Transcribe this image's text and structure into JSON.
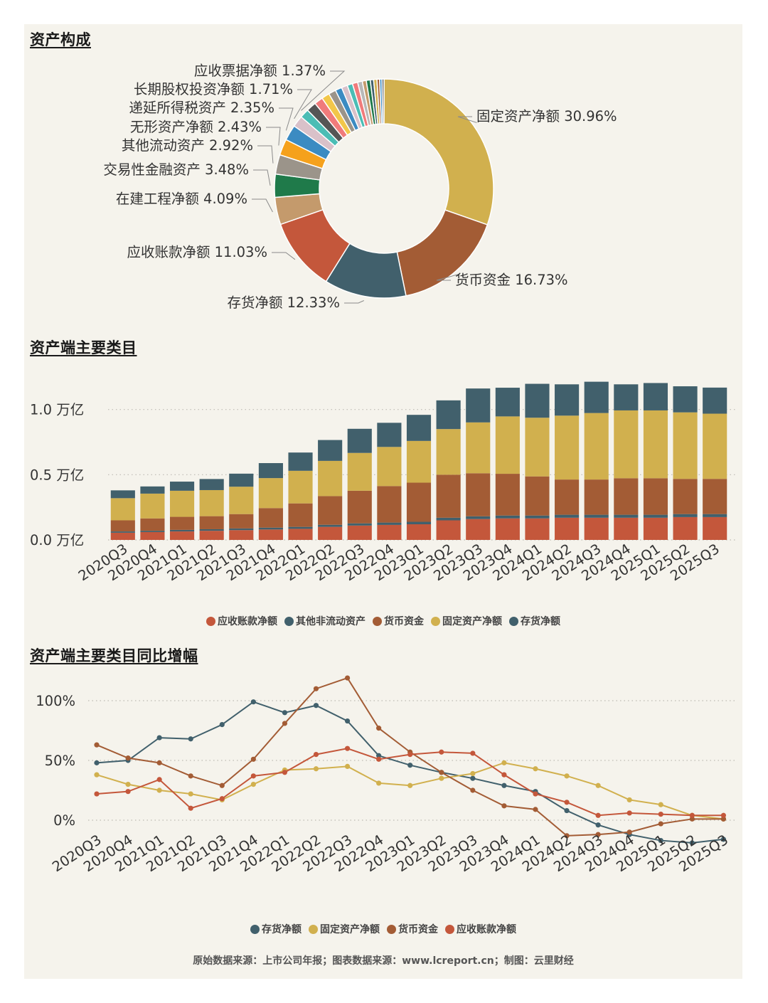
{
  "sections": {
    "donut_title": "资产构成",
    "bar_title": "资产端主要类目",
    "line_title": "资产端主要类目同比增幅"
  },
  "footer": "原始数据来源：上市公司年报；图表数据来源：www.lcreport.cn；制图：云里财经",
  "colors": {
    "yellow": "#d1b04e",
    "brown": "#a35c35",
    "slate": "#41606c",
    "red": "#c4573b",
    "tan": "#c49a6c",
    "green": "#1f7a4a",
    "gray": "#9b948a",
    "orange": "#f5a11c",
    "blue": "#3b8bc2",
    "pink": "#d9c1c9",
    "teal": "#4bbdb5",
    "dark": "#555555",
    "rose": "#f07b7b",
    "gold": "#f2c74a",
    "lightgray": "#b8b8b8",
    "grid": "#bdbab2"
  },
  "chart_data": [
    {
      "type": "pie",
      "title": "资产构成",
      "labels": [
        "固定资产净额",
        "货币资金",
        "存货净额",
        "应收账款净额",
        "在建工程净额",
        "交易性金融资产",
        "其他流动资产",
        "无形资产净额",
        "递延所得税资产",
        "长期股权投资净额",
        "应收票据净额"
      ],
      "values": [
        30.96,
        16.73,
        12.33,
        11.03,
        4.09,
        3.48,
        2.92,
        2.43,
        2.35,
        1.71,
        1.37
      ],
      "display_labels": [
        "固定资产净额 30.96%",
        "货币资金 16.73%",
        "存货净额 12.33%",
        "应收账款净额 11.03%",
        "在建工程净额 4.09%",
        "交易性金融资产 3.48%",
        "其他流动资产 2.92%",
        "无形资产净额 2.43%",
        "递延所得税资产 2.35%",
        "长期股权投资净额 1.71%",
        "应收票据净额 1.37%"
      ],
      "colors": [
        "#d1b04e",
        "#a35c35",
        "#41606c",
        "#c4573b",
        "#c49a6c",
        "#1f7a4a",
        "#9b948a",
        "#f5a11c",
        "#3b8bc2",
        "#d9c1c9",
        "#4bbdb5"
      ],
      "other_slices": [
        {
          "value": 1.5,
          "color": "#555555"
        },
        {
          "value": 1.3,
          "color": "#f07b7b"
        },
        {
          "value": 1.2,
          "color": "#f2c74a"
        },
        {
          "value": 1.1,
          "color": "#9b948a"
        },
        {
          "value": 1.0,
          "color": "#3b8bc2"
        },
        {
          "value": 0.9,
          "color": "#d9c1c9"
        },
        {
          "value": 0.8,
          "color": "#4bbdb5"
        },
        {
          "value": 0.8,
          "color": "#f07b7b"
        },
        {
          "value": 0.7,
          "color": "#b8b8b8"
        },
        {
          "value": 0.6,
          "color": "#c49a6c"
        },
        {
          "value": 0.6,
          "color": "#1f7a4a"
        },
        {
          "value": 0.5,
          "color": "#41606c"
        },
        {
          "value": 0.5,
          "color": "#d1b04e"
        },
        {
          "value": 0.4,
          "color": "#a35c35"
        },
        {
          "value": 0.35,
          "color": "#3b8bc2"
        },
        {
          "value": 0.3,
          "color": "#555555"
        }
      ]
    },
    {
      "type": "bar",
      "stacked": true,
      "title": "资产端主要类目",
      "categories": [
        "2020Q3",
        "2020Q4",
        "2021Q1",
        "2021Q2",
        "2021Q3",
        "2021Q4",
        "2022Q1",
        "2022Q2",
        "2022Q3",
        "2022Q4",
        "2023Q1",
        "2023Q2",
        "2023Q3",
        "2023Q4",
        "2024Q1",
        "2024Q2",
        "2024Q3",
        "2024Q4",
        "2025Q1",
        "2025Q2",
        "2025Q3"
      ],
      "ylim": [
        0,
        1.2
      ],
      "yticks": [
        0,
        0.5,
        1.0
      ],
      "ytick_labels": [
        "0.0 万亿",
        "0.5 万亿",
        "1.0 万亿"
      ],
      "series": [
        {
          "name": "应收账款净额",
          "color": "#c4573b",
          "values": [
            0.055,
            0.06,
            0.065,
            0.07,
            0.075,
            0.08,
            0.085,
            0.1,
            0.11,
            0.115,
            0.12,
            0.15,
            0.16,
            0.165,
            0.165,
            0.17,
            0.17,
            0.17,
            0.17,
            0.175,
            0.175
          ]
        },
        {
          "name": "其他非流动资产",
          "color": "#41606c",
          "values": [
            0.01,
            0.01,
            0.012,
            0.012,
            0.013,
            0.014,
            0.015,
            0.016,
            0.017,
            0.018,
            0.019,
            0.02,
            0.021,
            0.022,
            0.022,
            0.023,
            0.023,
            0.023,
            0.023,
            0.023,
            0.023
          ]
        },
        {
          "name": "货币资金",
          "color": "#a35c35",
          "values": [
            0.085,
            0.095,
            0.1,
            0.1,
            0.11,
            0.15,
            0.18,
            0.22,
            0.25,
            0.28,
            0.3,
            0.33,
            0.33,
            0.32,
            0.3,
            0.27,
            0.27,
            0.28,
            0.28,
            0.27,
            0.27
          ]
        },
        {
          "name": "固定资产净额",
          "color": "#d1b04e",
          "values": [
            0.17,
            0.19,
            0.2,
            0.2,
            0.21,
            0.23,
            0.25,
            0.27,
            0.29,
            0.3,
            0.32,
            0.35,
            0.39,
            0.44,
            0.45,
            0.49,
            0.51,
            0.52,
            0.52,
            0.51,
            0.5
          ]
        },
        {
          "name": "存货净额",
          "color": "#41606c",
          "values": [
            0.06,
            0.055,
            0.07,
            0.085,
            0.1,
            0.115,
            0.14,
            0.16,
            0.185,
            0.185,
            0.2,
            0.22,
            0.26,
            0.22,
            0.26,
            0.24,
            0.24,
            0.2,
            0.21,
            0.2,
            0.2
          ]
        }
      ],
      "legend": [
        "应收账款净额",
        "其他非流动资产",
        "货币资金",
        "固定资产净额",
        "存货净额"
      ]
    },
    {
      "type": "line",
      "title": "资产端主要类目同比增幅",
      "categories": [
        "2020Q3",
        "2020Q4",
        "2021Q1",
        "2021Q2",
        "2021Q3",
        "2021Q4",
        "2022Q1",
        "2022Q2",
        "2022Q3",
        "2022Q4",
        "2023Q1",
        "2023Q2",
        "2023Q3",
        "2023Q4",
        "2024Q1",
        "2024Q2",
        "2024Q3",
        "2024Q4",
        "2025Q1",
        "2025Q2",
        "2025Q3"
      ],
      "ylim": [
        -30,
        125
      ],
      "yticks": [
        0,
        50,
        100
      ],
      "ytick_labels": [
        "0%",
        "50%",
        "100%"
      ],
      "series": [
        {
          "name": "存货净额",
          "color": "#41606c",
          "values": [
            48,
            50,
            69,
            68,
            80,
            99,
            90,
            96,
            83,
            54,
            46,
            40,
            35,
            29,
            24,
            8,
            -4,
            -12,
            -17,
            -19,
            -16
          ]
        },
        {
          "name": "固定资产净额",
          "color": "#d1b04e",
          "values": [
            38,
            30,
            25,
            22,
            17,
            30,
            42,
            43,
            45,
            31,
            29,
            35,
            39,
            48,
            43,
            37,
            29,
            17,
            13,
            4,
            1
          ]
        },
        {
          "name": "货币资金",
          "color": "#a35c35",
          "values": [
            63,
            52,
            48,
            37,
            29,
            51,
            81,
            110,
            119,
            77,
            57,
            40,
            25,
            12,
            9,
            -13,
            -12,
            -10,
            -3,
            1,
            1
          ]
        },
        {
          "name": "应收账款净额",
          "color": "#c4573b",
          "values": [
            22,
            24,
            34,
            10,
            18,
            37,
            40,
            55,
            60,
            51,
            55,
            57,
            56,
            38,
            22,
            15,
            4,
            6,
            5,
            4,
            4
          ]
        }
      ],
      "legend": [
        "存货净额",
        "固定资产净额",
        "货币资金",
        "应收账款净额"
      ]
    }
  ]
}
